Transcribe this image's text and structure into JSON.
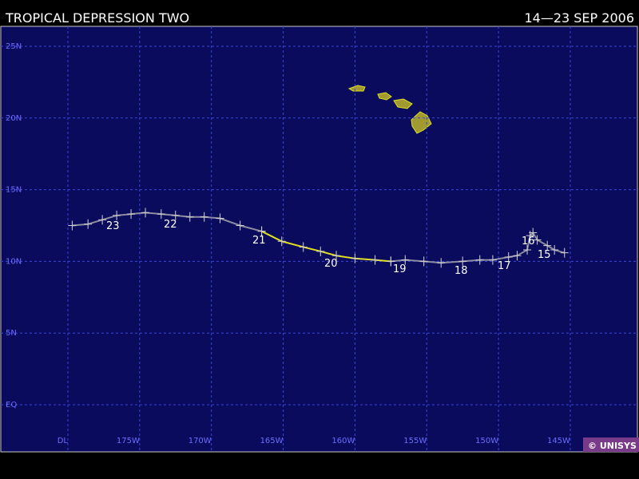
{
  "header": {
    "title": "TROPICAL DEPRESSION TWO",
    "dates": "14—23 SEP 2006"
  },
  "map": {
    "lat_lines": [
      {
        "value": 25,
        "label": "25N"
      },
      {
        "value": 20,
        "label": "20N"
      },
      {
        "value": 15,
        "label": "15N"
      },
      {
        "value": 10,
        "label": "10N"
      },
      {
        "value": 5,
        "label": "5N"
      },
      {
        "value": 0,
        "label": "EQ"
      }
    ],
    "lon_lines": [
      {
        "value": -180,
        "label": "DL"
      },
      {
        "value": -175,
        "label": "175W"
      },
      {
        "value": -170,
        "label": "170W"
      },
      {
        "value": -165,
        "label": "165W"
      },
      {
        "value": -160,
        "label": "160W"
      },
      {
        "value": -155,
        "label": "155W"
      },
      {
        "value": -150,
        "label": "150W"
      },
      {
        "value": -145,
        "label": "145W"
      }
    ],
    "track": [
      {
        "color": "#8c8ca0",
        "points": [
          [
            -145.4,
            10.6
          ],
          [
            -146.1,
            10.8
          ],
          [
            -146.6,
            11.1
          ],
          [
            -147.3,
            11.5
          ],
          [
            -147.6,
            12.0
          ],
          [
            -147.8,
            11.8
          ],
          [
            -148.0,
            10.8
          ],
          [
            -148.7,
            10.4
          ],
          [
            -149.3,
            10.3
          ],
          [
            -150.4,
            10.1
          ],
          [
            -151.3,
            10.1
          ],
          [
            -152.5,
            10.0
          ],
          [
            -154.0,
            9.9
          ],
          [
            -155.2,
            10.0
          ],
          [
            -156.5,
            10.1
          ],
          [
            -157.5,
            10.0
          ]
        ]
      },
      {
        "color": "#e0e020",
        "points": [
          [
            -157.5,
            10.0
          ],
          [
            -158.6,
            10.1
          ],
          [
            -160.0,
            10.2
          ],
          [
            -161.3,
            10.4
          ],
          [
            -162.4,
            10.7
          ],
          [
            -163.6,
            11.0
          ],
          [
            -165.1,
            11.4
          ],
          [
            -166.5,
            12.1
          ]
        ]
      },
      {
        "color": "#8c8ca0",
        "points": [
          [
            -166.5,
            12.1
          ],
          [
            -168.0,
            12.5
          ],
          [
            -169.4,
            13.0
          ],
          [
            -170.5,
            13.1
          ],
          [
            -171.5,
            13.1
          ],
          [
            -172.5,
            13.2
          ],
          [
            -173.5,
            13.3
          ],
          [
            -174.6,
            13.4
          ],
          [
            -175.6,
            13.3
          ],
          [
            -176.6,
            13.2
          ],
          [
            -177.6,
            12.9
          ],
          [
            -178.6,
            12.6
          ],
          [
            -179.7,
            12.5
          ]
        ]
      }
    ],
    "day_labels": [
      "23",
      "22",
      "21",
      "20",
      "19",
      "18",
      "17",
      "16",
      "15"
    ]
  },
  "footer": {
    "credit": "© UNISYS"
  }
}
